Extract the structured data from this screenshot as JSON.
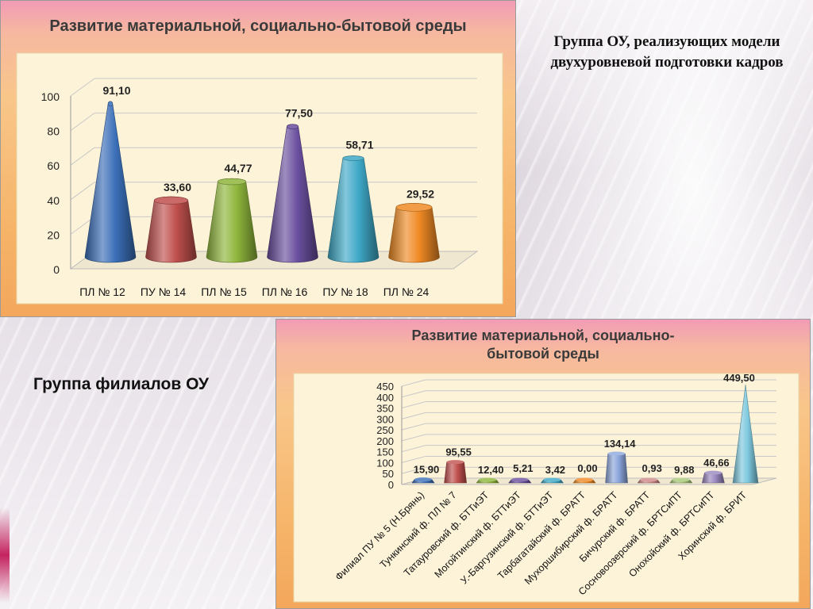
{
  "right_heading": "Группа ОУ, реализующих модели двухуровневой подготовки кадров",
  "left_heading": "Группа филиалов ОУ",
  "chart_data": [
    {
      "type": "bar",
      "shape": "cone",
      "title": "Развитие материальной, социально-бытовой среды",
      "categories": [
        "ПЛ № 12",
        "ПУ № 14",
        "ПЛ № 15",
        "ПЛ № 16",
        "ПУ № 18",
        "ПЛ № 24"
      ],
      "values": [
        91.1,
        33.6,
        44.77,
        77.5,
        58.71,
        29.52
      ],
      "value_labels": [
        "91,10",
        "33,60",
        "44,77",
        "77,50",
        "58,71",
        "29,52"
      ],
      "yticks": [
        "0",
        "20",
        "40",
        "60",
        "80",
        "100"
      ],
      "ylim": [
        0,
        100
      ],
      "colors": [
        "#3b6fb8",
        "#c0504d",
        "#8fb63c",
        "#6a4f9e",
        "#3fa9c7",
        "#f08a24"
      ]
    },
    {
      "type": "bar",
      "shape": "mixed-3d",
      "title": "Развитие материальной, социально-бытовой среды",
      "categories": [
        "Филиал ПУ № 5 (Н.Брянь)",
        "Тункинский ф. ПЛ № 7",
        "Татауровский ф. БТТиЭТ",
        "Могойтинский ф. БТТиЭТ",
        "У.-Баргузинский ф. БТТиЭТ",
        "Тарбагатайский ф. БРАТТ",
        "Мухоршибирский ф. БРАТТ",
        "Бичурский ф. БРАТТ",
        "Сосновоозерский ф. БРТСиПТ",
        "Онохойский ф. БРТСиПТ",
        "Хоринский ф. БРИТ"
      ],
      "values": [
        15.9,
        95.55,
        12.4,
        5.21,
        3.42,
        0.0,
        134.14,
        0.93,
        9.88,
        46.66,
        449.5
      ],
      "value_labels": [
        "15,90",
        "95,55",
        "12,40",
        "5,21",
        "3,42",
        "0,00",
        "134,14",
        "0,93",
        "9,88",
        "46,66",
        "449,50"
      ],
      "yticks": [
        "0",
        "50",
        "100",
        "150",
        "200",
        "250",
        "300",
        "350",
        "400",
        "450"
      ],
      "ylim": [
        0,
        450
      ],
      "colors": [
        "#3b6fb8",
        "#c0504d",
        "#8fb63c",
        "#6a4f9e",
        "#3fa9c7",
        "#f08a24",
        "#8ca6dc",
        "#d08888",
        "#a8c878",
        "#9a88c0",
        "#7ec8de"
      ]
    }
  ]
}
